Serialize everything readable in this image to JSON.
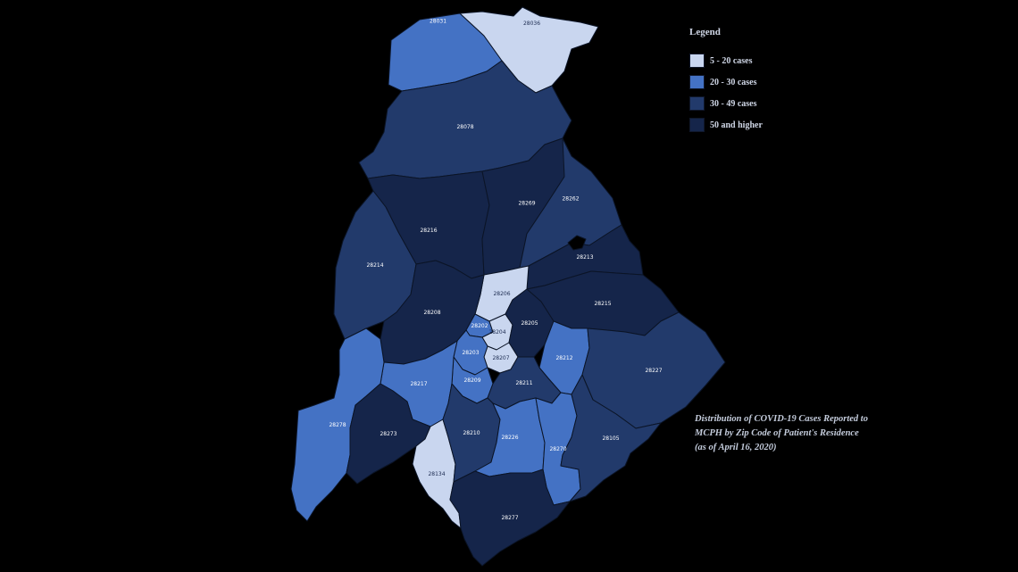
{
  "legend": {
    "title": "Legend",
    "items": [
      {
        "label": "5 - 20 cases",
        "color": "#c9d6ef"
      },
      {
        "label": "20 - 30 cases",
        "color": "#4472c4"
      },
      {
        "label": "30 - 49 cases",
        "color": "#223a6b"
      },
      {
        "label": "50 and higher",
        "color": "#15254a"
      }
    ]
  },
  "caption": {
    "line1": "Distribution of COVID-19 Cases Reported to",
    "line2": "MCPH by Zip Code of Patient's Residence",
    "line3": "(as of April 16, 2020)"
  },
  "zips": [
    {
      "code": "28078",
      "bin": 3
    },
    {
      "code": "28036",
      "bin": 1
    },
    {
      "code": "28031",
      "bin": 2
    },
    {
      "code": "28269",
      "bin": 4
    },
    {
      "code": "28262",
      "bin": 3
    },
    {
      "code": "28216",
      "bin": 4
    },
    {
      "code": "28214",
      "bin": 3
    },
    {
      "code": "28213",
      "bin": 4
    },
    {
      "code": "28206",
      "bin": 1
    },
    {
      "code": "28215",
      "bin": 4
    },
    {
      "code": "28208",
      "bin": 4
    },
    {
      "code": "28202",
      "bin": 2
    },
    {
      "code": "28204",
      "bin": 1
    },
    {
      "code": "28205",
      "bin": 4
    },
    {
      "code": "28207",
      "bin": 1
    },
    {
      "code": "28203",
      "bin": 2
    },
    {
      "code": "28209",
      "bin": 2
    },
    {
      "code": "28212",
      "bin": 2
    },
    {
      "code": "28211",
      "bin": 3
    },
    {
      "code": "28227",
      "bin": 3
    },
    {
      "code": "28217",
      "bin": 2
    },
    {
      "code": "28273",
      "bin": 4
    },
    {
      "code": "28278",
      "bin": 2
    },
    {
      "code": "28210",
      "bin": 3
    },
    {
      "code": "28226",
      "bin": 2
    },
    {
      "code": "28270",
      "bin": 2
    },
    {
      "code": "28105",
      "bin": 3
    },
    {
      "code": "28134",
      "bin": 1
    },
    {
      "code": "28277",
      "bin": 4
    }
  ]
}
